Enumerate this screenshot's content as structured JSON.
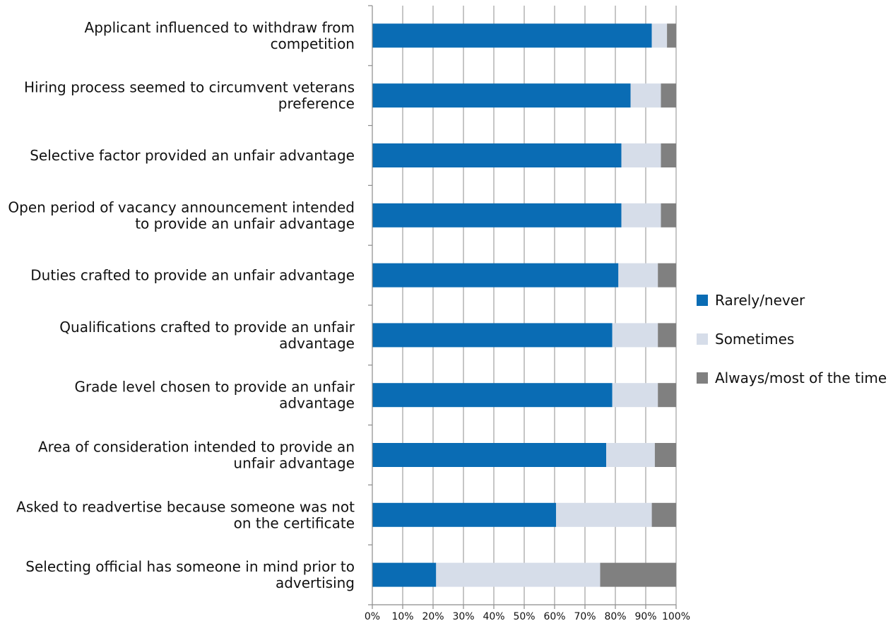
{
  "chart_data": {
    "type": "bar",
    "orientation": "horizontal",
    "stacked": true,
    "categories": [
      [
        "Applicant influenced to withdraw from",
        "competition"
      ],
      [
        "Hiring process seemed to circumvent veterans",
        "preference"
      ],
      [
        "Selective factor provided an unfair advantage"
      ],
      [
        "Open period of vacancy announcement intended",
        "to provide an unfair advantage"
      ],
      [
        "Duties crafted to provide an unfair advantage"
      ],
      [
        "Qualifications crafted to provide an unfair",
        "advantage"
      ],
      [
        "Grade level chosen to provide an unfair",
        "advantage"
      ],
      [
        "Area of consideration intended to provide an",
        "unfair advantage"
      ],
      [
        "Asked to readvertise because someone was not",
        "on the certificate"
      ],
      [
        "Selecting official has someone in mind prior to",
        "advertising"
      ]
    ],
    "series": [
      {
        "name": "Rarely/never",
        "color": "#0a6cb4",
        "values": [
          92,
          85,
          82,
          82,
          81,
          79,
          79,
          77,
          60.5,
          21
        ]
      },
      {
        "name": "Sometimes",
        "color": "#d6dde9",
        "values": [
          5,
          10,
          13,
          13,
          13,
          15,
          15,
          16,
          31.5,
          54
        ]
      },
      {
        "name": "Always/most of the time",
        "color": "#808080",
        "values": [
          3,
          5,
          5,
          5,
          6,
          6,
          6,
          7,
          8,
          25
        ]
      }
    ],
    "x_ticks": [
      "0%",
      "10%",
      "20%",
      "30%",
      "40%",
      "50%",
      "60%",
      "70%",
      "80%",
      "90%",
      "100%"
    ],
    "xlim": [
      0,
      100
    ],
    "grid": true,
    "legend": "right"
  }
}
